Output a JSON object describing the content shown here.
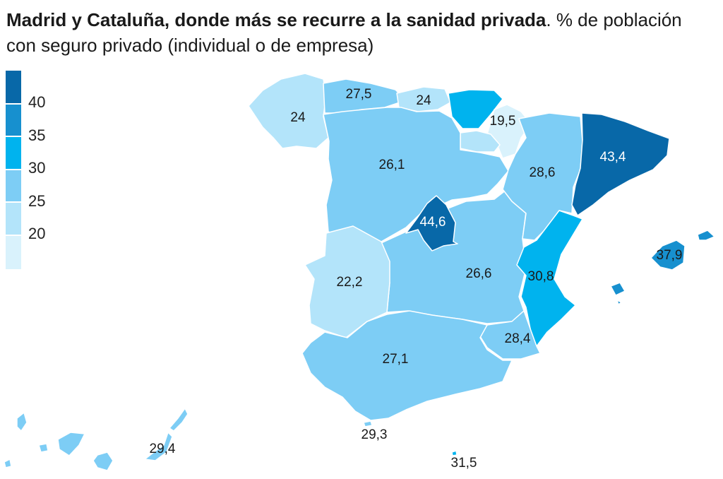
{
  "title": {
    "bold": "Madrid y Cataluña, donde más se recurre a la sanidad privada",
    "rest": ". % de población con seguro privado (individual o de empresa)"
  },
  "legend": {
    "ticks": [
      "40",
      "35",
      "30",
      "25",
      "20"
    ],
    "colors": [
      "#0868a8",
      "#1790cf",
      "#00b3ee",
      "#7dcdf5",
      "#b3e4fa",
      "#d9f2fc"
    ]
  },
  "regions": [
    {
      "name": "Galicia",
      "value": "24",
      "color": "#b3e4fa"
    },
    {
      "name": "Asturias",
      "value": "27,5",
      "color": "#7dcdf5"
    },
    {
      "name": "Cantabria",
      "value": "24",
      "color": "#b3e4fa"
    },
    {
      "name": "País Vasco",
      "value": "",
      "color": "#00b3ee"
    },
    {
      "name": "Navarra",
      "value": "19,5",
      "color": "#d9f2fc"
    },
    {
      "name": "La Rioja",
      "value": "",
      "color": "#b3e4fa"
    },
    {
      "name": "Castilla y León",
      "value": "26,1",
      "color": "#7dcdf5"
    },
    {
      "name": "Aragón",
      "value": "28,6",
      "color": "#7dcdf5"
    },
    {
      "name": "Cataluña",
      "value": "43,4",
      "color": "#0868a8"
    },
    {
      "name": "Madrid",
      "value": "44,6",
      "color": "#0868a8"
    },
    {
      "name": "Extremadura",
      "value": "22,2",
      "color": "#b3e4fa"
    },
    {
      "name": "Castilla-La Mancha",
      "value": "26,6",
      "color": "#7dcdf5"
    },
    {
      "name": "Comunidad Valenciana",
      "value": "30,8",
      "color": "#00b3ee"
    },
    {
      "name": "Illes Balears",
      "value": "37,9",
      "color": "#1790cf"
    },
    {
      "name": "Murcia",
      "value": "28,4",
      "color": "#7dcdf5"
    },
    {
      "name": "Andalucía",
      "value": "27,1",
      "color": "#7dcdf5"
    },
    {
      "name": "Ceuta",
      "value": "29,3",
      "color": "#7dcdf5"
    },
    {
      "name": "Melilla",
      "value": "31,5",
      "color": "#00b3ee"
    },
    {
      "name": "Canarias",
      "value": "29,4",
      "color": "#7dcdf5"
    }
  ]
}
